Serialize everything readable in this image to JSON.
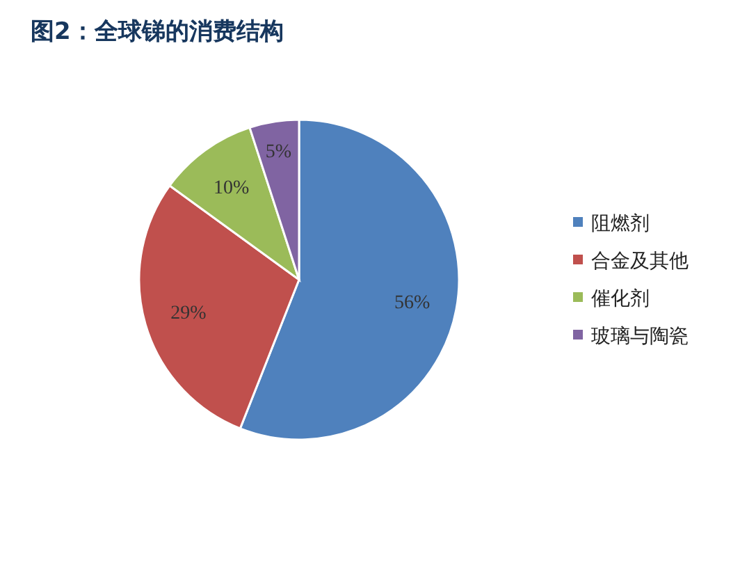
{
  "chart_data": {
    "type": "pie",
    "title": "图2：全球锑的消费结构",
    "categories": [
      "阻燃剂",
      "合金及其他",
      "催化剂",
      "玻璃与陶瓷"
    ],
    "values": [
      56,
      29,
      10,
      5
    ],
    "colors": [
      "#4f81bd",
      "#c0504d",
      "#9bbb59",
      "#8064a2"
    ],
    "value_labels": [
      "56%",
      "29%",
      "10%",
      "5%"
    ],
    "legend": "right"
  }
}
